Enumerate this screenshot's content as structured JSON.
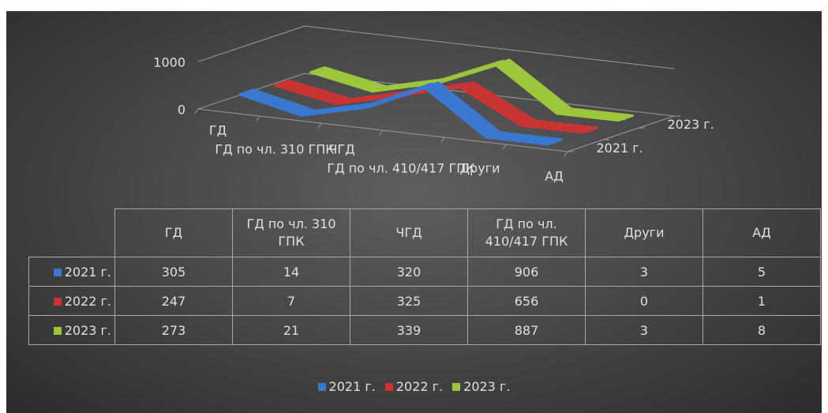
{
  "chart_data": {
    "type": "line3d",
    "categories": [
      "ГД",
      "ГД по чл. 310 ГПК",
      "ЧГД",
      "ГД по чл. 410/417 ГПК",
      "Други",
      "АД"
    ],
    "series": [
      {
        "name": "2021 г.",
        "color": "#3a78d0",
        "values": [
          305,
          14,
          320,
          906,
          3,
          5
        ]
      },
      {
        "name": "2022 г.",
        "color": "#c83434",
        "values": [
          247,
          7,
          325,
          656,
          0,
          1
        ]
      },
      {
        "name": "2023 г.",
        "color": "#9cc63c",
        "values": [
          273,
          21,
          339,
          887,
          3,
          8
        ]
      }
    ],
    "ylim": [
      0,
      1000
    ],
    "yticks": [
      0,
      1000
    ],
    "grid": true,
    "legend": "bottom"
  }
}
